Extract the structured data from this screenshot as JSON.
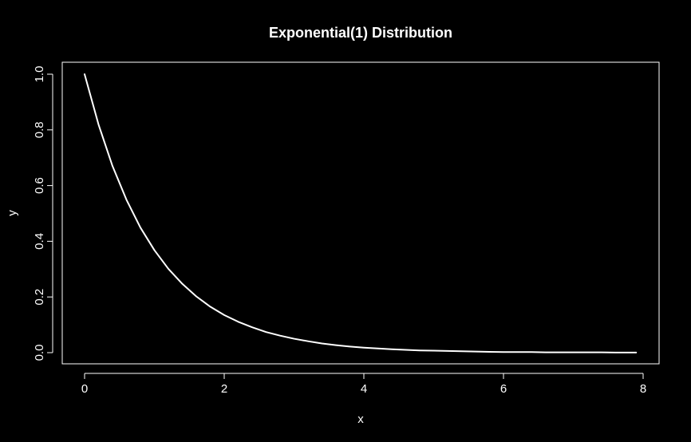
{
  "chart_data": {
    "type": "line",
    "title": "Exponential(1) Distribution",
    "xlabel": "x",
    "ylabel": "y",
    "xlim": [
      0,
      8
    ],
    "ylim": [
      0,
      1
    ],
    "x_ticks": [
      "0",
      "2",
      "4",
      "6",
      "8"
    ],
    "y_ticks": [
      "0.0",
      "0.2",
      "0.4",
      "0.6",
      "0.8",
      "1.0"
    ],
    "x_tick_values": [
      0,
      2,
      4,
      6,
      8
    ],
    "y_tick_values": [
      0,
      0.2,
      0.4,
      0.6,
      0.8,
      1.0
    ],
    "grid": false,
    "series": [
      {
        "x": [
          0,
          0.2,
          0.4,
          0.6,
          0.8,
          1.0,
          1.2,
          1.4,
          1.6,
          1.8,
          2.0,
          2.2,
          2.4,
          2.6,
          2.8,
          3.0,
          3.2,
          3.4,
          3.6,
          3.8,
          4.0,
          4.2,
          4.4,
          4.6,
          4.8,
          5.0,
          5.2,
          5.4,
          5.6,
          5.8,
          6.0,
          6.2,
          6.4,
          6.6,
          6.8,
          7.0,
          7.2,
          7.4,
          7.6,
          7.8,
          7.9
        ],
        "y": [
          1.0,
          0.819,
          0.67,
          0.549,
          0.449,
          0.368,
          0.301,
          0.247,
          0.202,
          0.165,
          0.135,
          0.111,
          0.091,
          0.074,
          0.061,
          0.05,
          0.041,
          0.033,
          0.027,
          0.022,
          0.018,
          0.015,
          0.012,
          0.01,
          0.008,
          0.007,
          0.006,
          0.005,
          0.004,
          0.003,
          0.002,
          0.002,
          0.002,
          0.001,
          0.001,
          0.001,
          0.001,
          0.001,
          0.0005,
          0.0004,
          0.0004
        ],
        "color": "#ffffff"
      }
    ],
    "background": "#000000",
    "foreground": "#ffffff"
  }
}
